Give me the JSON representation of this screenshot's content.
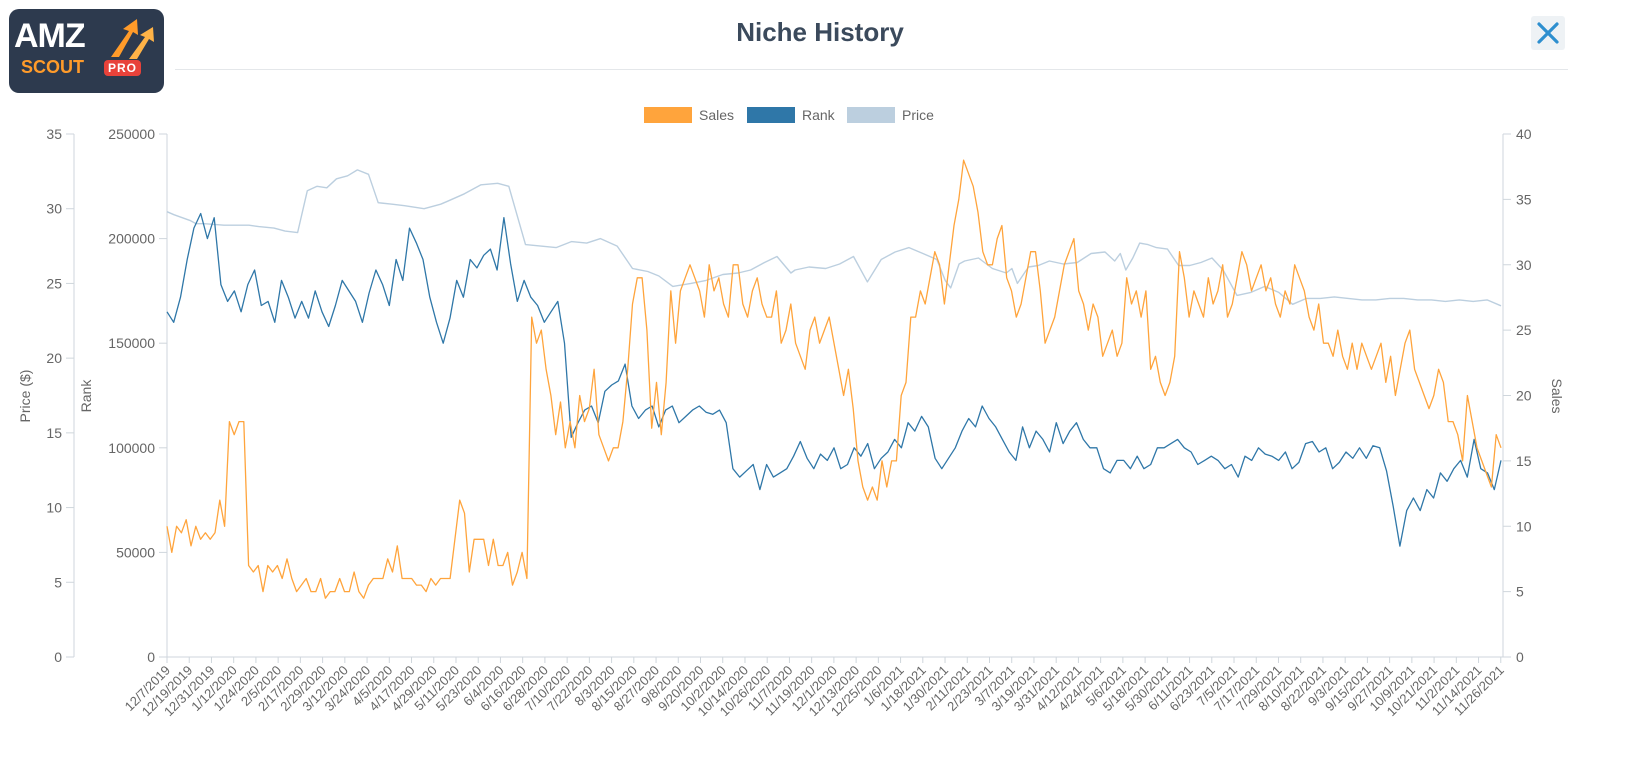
{
  "header": {
    "title": "Niche History",
    "logo_text_top": "AMZ",
    "logo_text_bottom": "SCOUT",
    "logo_badge": "PRO",
    "close_icon": "close-icon"
  },
  "colors": {
    "sales": "#ffa43c",
    "rank": "#2f77a8",
    "price": "#bccfdf",
    "axis_text": "#666666",
    "title": "#3b4a5c",
    "close": "#2e8fcf"
  },
  "chart_data": {
    "type": "line",
    "legend": {
      "position": "top-center",
      "items": [
        "Sales",
        "Rank",
        "Price"
      ]
    },
    "grid": false,
    "axes": {
      "price": {
        "label": "Price ($)",
        "side": "left-outer",
        "range": [
          0,
          35
        ],
        "ticks": [
          "0",
          "5",
          "10",
          "15",
          "20",
          "25",
          "30",
          "35"
        ]
      },
      "rank": {
        "label": "Rank",
        "side": "left-inner",
        "range": [
          0,
          250000
        ],
        "ticks": [
          "0",
          "50000",
          "100000",
          "150000",
          "200000",
          "250000"
        ]
      },
      "sales": {
        "label": "Sales",
        "side": "right",
        "range": [
          0,
          40
        ],
        "ticks": [
          "0",
          "5",
          "10",
          "15",
          "20",
          "25",
          "30",
          "35",
          "40"
        ]
      }
    },
    "x_labels": [
      "12/7/2019",
      "12/19/2019",
      "12/31/2019",
      "1/12/2020",
      "1/24/2020",
      "2/5/2020",
      "2/17/2020",
      "2/29/2020",
      "3/12/2020",
      "3/24/2020",
      "4/5/2020",
      "4/17/2020",
      "4/29/2020",
      "5/11/2020",
      "5/23/2020",
      "6/4/2020",
      "6/16/2020",
      "6/28/2020",
      "7/10/2020",
      "7/22/2020",
      "8/3/2020",
      "8/15/2020",
      "8/27/2020",
      "9/8/2020",
      "9/20/2020",
      "10/2/2020",
      "10/14/2020",
      "10/26/2020",
      "11/7/2020",
      "11/19/2020",
      "12/1/2020",
      "12/13/2020",
      "12/25/2020",
      "1/6/2021",
      "1/18/2021",
      "1/30/2021",
      "2/11/2021",
      "2/23/2021",
      "3/7/2021",
      "3/19/2021",
      "3/31/2021",
      "4/12/2021",
      "4/24/2021",
      "5/6/2021",
      "5/18/2021",
      "5/30/2021",
      "6/11/2021",
      "6/23/2021",
      "7/5/2021",
      "7/17/2021",
      "7/29/2021",
      "8/10/2021",
      "8/22/2021",
      "9/3/2021",
      "9/15/2021",
      "9/27/2021",
      "10/9/2021",
      "10/21/2021",
      "11/2/2021",
      "11/14/2021",
      "11/26/2021"
    ],
    "series": [
      {
        "name": "Price",
        "axis": "price",
        "values": [
          29.8,
          29.6,
          29.2,
          29.0,
          29.0,
          28.9,
          28.9,
          28.8,
          28.7,
          28.5,
          28.4,
          31.2,
          31.5,
          31.4,
          32.0,
          32.2,
          32.6,
          32.3,
          30.4,
          30.3,
          30.2,
          30.0,
          30.3,
          30.5,
          31.0,
          31.6,
          31.7,
          31.5,
          27.6,
          27.5,
          27.4,
          27.8,
          27.7,
          28.0,
          27.5,
          26.0,
          25.8,
          25.5,
          24.8,
          25.0,
          25.2,
          25.6,
          25.7,
          25.9,
          26.4,
          26.8,
          25.7,
          25.9,
          26.1,
          26.0,
          26.3,
          26.8,
          25.1,
          26.6,
          27.1,
          27.4,
          27.0,
          26.6,
          25.2,
          24.7,
          26.3,
          26.5,
          26.7,
          26.0,
          25.7,
          26.0,
          25.0,
          26.1,
          26.2,
          26.5,
          26.3,
          26.4,
          27.0,
          27.1,
          26.5,
          27.0,
          25.9,
          26.7,
          27.7,
          27.6,
          27.4,
          27.3,
          26.2,
          26.2,
          26.4,
          26.7,
          25.9,
          24.2,
          24.4,
          24.8,
          24.4,
          23.6,
          24.0,
          24.0,
          24.1,
          24.0,
          23.9,
          23.9,
          24.0,
          24.0,
          23.9,
          23.9,
          23.8,
          23.9,
          23.8,
          23.9,
          23.5
        ],
        "x_positions": [
          0,
          0.5,
          1.7,
          2.1,
          2.7,
          4.1,
          5.9,
          6.6,
          7.7,
          8.5,
          9.4,
          10.1,
          10.8,
          11.5,
          12.2,
          13.0,
          13.7,
          14.5,
          15.2,
          16.2,
          17.1,
          18.5,
          19.7,
          20.2,
          21.4,
          22.6,
          23.8,
          24.6,
          25.8,
          26.9,
          28.0,
          29.1,
          30.2,
          31.2,
          32.4,
          33.5,
          34.6,
          35.4,
          36.4,
          37.7,
          38.8,
          40.0,
          41.1,
          42.0,
          43.0,
          43.9,
          44.9,
          45.2,
          46.2,
          47.4,
          48.4,
          49.4,
          50.4,
          51.4,
          52.4,
          53.4,
          54.4,
          55.4,
          56.0,
          56.4,
          57.0,
          57.4,
          58.4,
          59.4,
          60.4,
          60.8,
          61.2,
          62.0,
          62.7,
          63.5,
          64.5,
          65.5,
          66.5,
          67.5,
          68.2,
          68.6,
          69.0,
          69.5,
          70.0,
          70.6,
          71.2,
          72.0,
          72.8,
          73.6,
          74.4,
          75.2,
          76.0,
          77.0,
          78.0,
          79.0,
          80.0,
          81.0,
          82.0,
          83.0,
          84.0,
          85.0,
          86.0,
          87.0,
          88.0,
          89.0,
          90.0,
          91.0,
          92.0,
          93.0,
          94.0,
          95.0,
          96.0
        ]
      },
      {
        "name": "Rank",
        "axis": "rank",
        "values": [
          165000,
          160000,
          172000,
          190000,
          205000,
          212000,
          200000,
          210000,
          178000,
          170000,
          175000,
          165000,
          178000,
          185000,
          168000,
          170000,
          160000,
          180000,
          172000,
          162000,
          170000,
          162000,
          175000,
          165000,
          158000,
          168000,
          180000,
          175000,
          170000,
          160000,
          174000,
          185000,
          178000,
          168000,
          190000,
          180000,
          205000,
          198000,
          190000,
          172000,
          160000,
          150000,
          162000,
          180000,
          172000,
          190000,
          186000,
          192000,
          195000,
          185000,
          210000,
          188000,
          170000,
          180000,
          172000,
          168000,
          160000,
          165000,
          170000,
          150000,
          105000,
          112000,
          118000,
          120000,
          112000,
          127000,
          130000,
          132000,
          140000,
          120000,
          114000,
          118000,
          120000,
          110000,
          118000,
          120000,
          112000,
          115000,
          118000,
          120000,
          117000,
          116000,
          118000,
          112000,
          90000,
          86000,
          89000,
          92000,
          80000,
          92000,
          86000,
          88000,
          90000,
          96000,
          103000,
          95000,
          90000,
          97000,
          94000,
          100000,
          90000,
          92000,
          100000,
          96000,
          102000,
          90000,
          95000,
          98000,
          104000,
          100000,
          112000,
          108000,
          115000,
          110000,
          95000,
          90000,
          95000,
          100000,
          108000,
          114000,
          110000,
          120000,
          114000,
          110000,
          104000,
          98000,
          94000,
          110000,
          100000,
          108000,
          104000,
          98000,
          112000,
          102000,
          108000,
          112000,
          104000,
          100000,
          100000,
          90000,
          88000,
          94000,
          94000,
          90000,
          96000,
          90000,
          92000,
          100000,
          100000,
          102000,
          104000,
          100000,
          98000,
          92000,
          94000,
          96000,
          94000,
          90000,
          92000,
          86000,
          96000,
          94000,
          100000,
          97000,
          96000,
          94000,
          98000,
          90000,
          93000,
          102000,
          103000,
          98000,
          100000,
          90000,
          93000,
          98000,
          95000,
          100000,
          95000,
          101000,
          100000,
          89000,
          72000,
          53000,
          70000,
          76000,
          70000,
          80000,
          76000,
          88000,
          84000,
          90000,
          94000,
          86000,
          104000,
          90000,
          88000,
          80000,
          94000
        ],
        "x_positions": "uniform"
      },
      {
        "name": "Sales",
        "axis": "sales",
        "values": [
          10,
          8,
          10,
          9.5,
          10.5,
          8.5,
          10,
          9,
          9.5,
          9,
          9.5,
          12,
          10,
          18,
          17,
          18,
          18,
          7,
          6.5,
          7,
          5,
          7,
          6.5,
          7,
          6,
          7.5,
          6,
          5,
          5.5,
          6,
          5,
          5,
          6,
          4.5,
          5,
          5,
          6,
          5,
          5,
          6.5,
          5,
          4.5,
          5.5,
          6,
          6,
          6,
          7.5,
          6.5,
          8.5,
          6,
          6,
          6,
          5.5,
          5.5,
          5,
          6,
          5.5,
          6,
          6,
          6,
          9,
          12,
          11,
          6.5,
          9,
          9,
          9,
          7,
          9,
          7,
          7,
          8,
          5.5,
          6.5,
          8,
          6,
          26,
          24,
          25,
          22,
          20,
          17,
          19.5,
          16,
          18,
          16,
          20,
          18,
          19,
          22,
          17,
          16,
          15,
          16,
          16,
          18,
          22,
          27,
          29,
          29,
          25,
          17.5,
          21,
          17,
          21,
          28,
          24,
          28,
          29,
          30,
          29,
          28,
          26,
          30,
          28,
          29,
          27,
          26,
          30,
          30,
          27,
          26,
          28,
          29,
          27,
          26,
          26,
          28,
          24,
          25,
          27,
          24,
          23,
          22,
          25,
          26,
          24,
          25,
          26,
          24,
          22,
          20,
          22,
          19,
          15,
          13,
          12,
          13,
          12,
          15,
          13,
          15,
          15,
          20,
          21,
          26,
          26,
          28,
          27,
          29,
          31,
          30,
          27,
          30,
          33,
          35,
          38,
          37,
          36,
          34,
          31,
          30,
          30,
          32,
          33,
          29,
          28,
          26,
          27,
          29,
          31,
          31,
          28,
          24,
          25,
          26,
          28,
          30,
          31,
          32,
          28,
          27,
          25,
          27,
          26,
          23,
          24,
          25,
          23,
          24,
          29,
          27,
          28,
          26,
          28,
          22,
          23,
          21,
          20,
          21,
          23,
          31,
          29,
          26,
          28,
          27,
          26,
          29,
          27,
          28,
          30,
          26,
          27,
          29,
          31,
          30,
          28,
          29,
          30,
          28,
          29,
          27,
          26,
          28,
          27,
          30,
          29,
          28,
          26,
          25,
          27,
          24,
          24,
          23,
          25,
          23,
          22,
          24,
          22,
          24,
          23,
          22,
          23,
          24,
          21,
          23,
          20,
          22,
          24,
          25,
          22,
          21,
          20,
          19,
          20,
          22,
          21,
          18,
          18,
          17,
          15,
          20,
          18,
          16,
          15,
          14,
          13,
          17,
          16
        ],
        "x_positions": "uniform"
      }
    ]
  }
}
